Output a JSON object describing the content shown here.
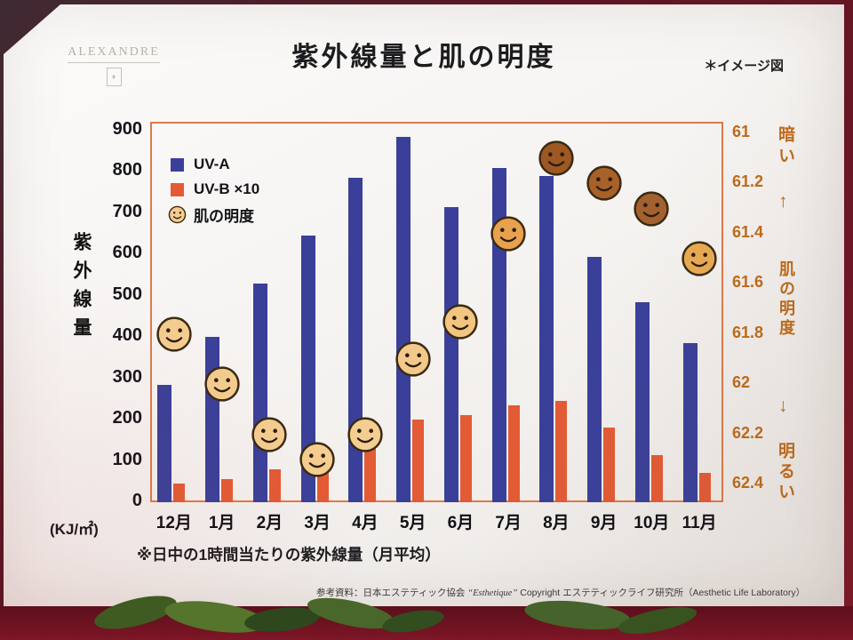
{
  "page": {
    "brand": "ALEXANDRE",
    "annotation": "＊イメージ図",
    "footer_prefix": "参考資料：日本エステティック協会",
    "footer_script": "“Esthetique”",
    "footer_suffix": "Copyright  エステティックライフ研究所（Aesthetic Life Laboratory）"
  },
  "chart_data": {
    "type": "bar",
    "title": "紫外線量と肌の明度",
    "categories": [
      "12月",
      "1月",
      "2月",
      "3月",
      "4月",
      "5月",
      "6月",
      "7月",
      "8月",
      "9月",
      "10月",
      "11月"
    ],
    "series": [
      {
        "name": "UV-A",
        "color": "#3a4099",
        "values": [
          285,
          400,
          530,
          645,
          785,
          885,
          715,
          810,
          790,
          595,
          485,
          385
        ]
      },
      {
        "name": "UV-B ×10",
        "color": "#e25b35",
        "values": [
          45,
          55,
          80,
          105,
          165,
          200,
          210,
          235,
          245,
          180,
          115,
          70
        ]
      }
    ],
    "skin_brightness": {
      "name": "肌の明度",
      "values": [
        61.8,
        62.0,
        62.2,
        62.3,
        62.2,
        61.9,
        61.75,
        61.4,
        61.1,
        61.2,
        61.3,
        61.5
      ],
      "colors": [
        "#f4cd90",
        "#f4cd90",
        "#f4cd90",
        "#f4cd90",
        "#f4cd90",
        "#f2c98a",
        "#f2c580",
        "#e8a24e",
        "#9e5824",
        "#a86128",
        "#a3612f",
        "#e9aa52"
      ]
    },
    "left_axis": {
      "label": "紫外線量",
      "unit": "(KJ/㎡)",
      "ticks": [
        900,
        800,
        700,
        600,
        500,
        400,
        300,
        200,
        100,
        0
      ],
      "range": [
        0,
        900
      ]
    },
    "right_axis": {
      "label": "肌の明度",
      "dark_label": "暗い",
      "bright_label": "明るい",
      "arrow_up": "↑",
      "arrow_down": "↓",
      "ticks": [
        "61",
        "61.2",
        "61.4",
        "61.6",
        "61.8",
        "62",
        "62.2",
        "62.4"
      ],
      "range": [
        61,
        62.4
      ],
      "inverted": true
    },
    "note": "※日中の1時間当たりの紫外線量（月平均）",
    "border_color": "#dd7a4a",
    "legend_position": "top-left",
    "grid": false
  }
}
